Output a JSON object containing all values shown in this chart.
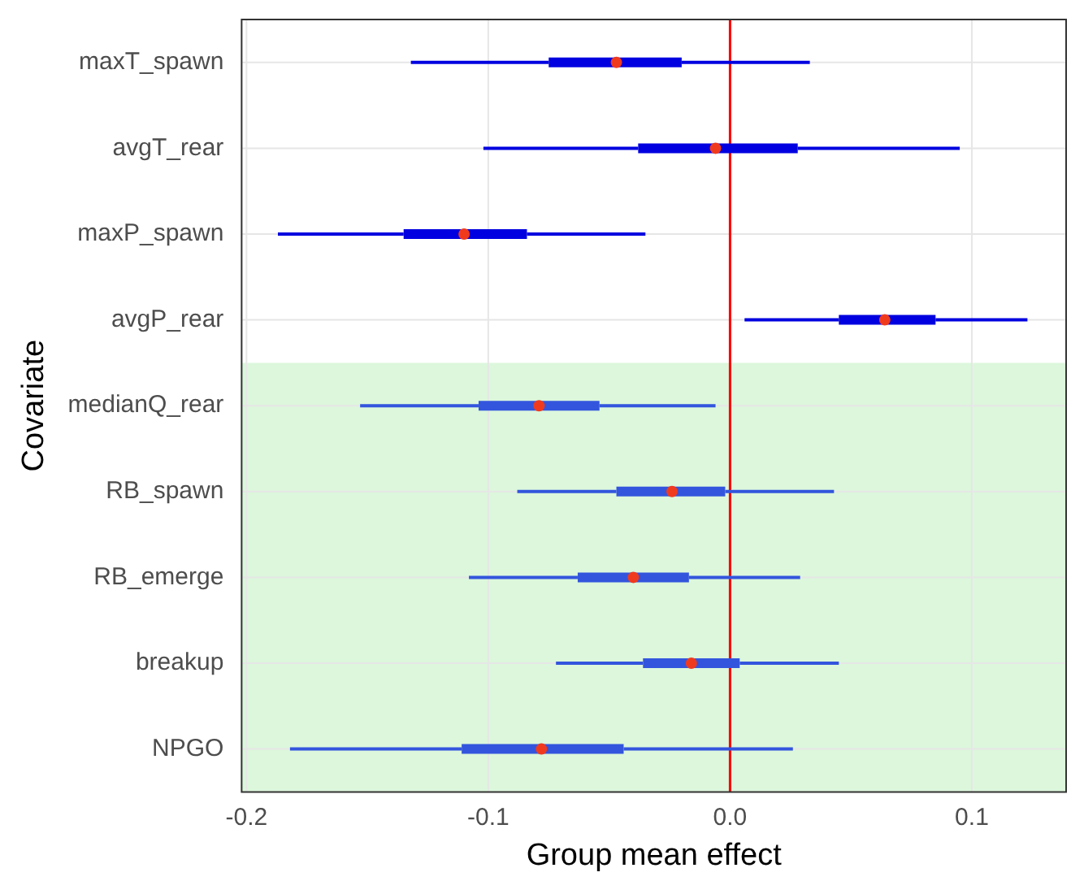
{
  "chart_data": {
    "type": "box",
    "orientation": "horizontal",
    "xlabel": "Group mean effect",
    "ylabel": "Covariate",
    "categories": [
      "maxT_spawn",
      "avgT_rear",
      "maxP_spawn",
      "avgP_rear",
      "medianQ_rear",
      "RB_spawn",
      "RB_emerge",
      "breakup",
      "NPGO"
    ],
    "boxes": [
      {
        "low": -0.132,
        "q1": -0.075,
        "median": -0.047,
        "q3": -0.02,
        "high": 0.033
      },
      {
        "low": -0.102,
        "q1": -0.038,
        "median": -0.006,
        "q3": 0.028,
        "high": 0.095
      },
      {
        "low": -0.187,
        "q1": -0.135,
        "median": -0.11,
        "q3": -0.084,
        "high": -0.035
      },
      {
        "low": 0.006,
        "q1": 0.045,
        "median": 0.064,
        "q3": 0.085,
        "high": 0.123
      },
      {
        "low": -0.153,
        "q1": -0.104,
        "median": -0.079,
        "q3": -0.054,
        "high": -0.006
      },
      {
        "low": -0.088,
        "q1": -0.047,
        "median": -0.024,
        "q3": -0.002,
        "high": 0.043
      },
      {
        "low": -0.108,
        "q1": -0.063,
        "median": -0.04,
        "q3": -0.017,
        "high": 0.029
      },
      {
        "low": -0.072,
        "q1": -0.036,
        "median": -0.016,
        "q3": 0.004,
        "high": 0.045
      },
      {
        "low": -0.182,
        "q1": -0.111,
        "median": -0.078,
        "q3": -0.044,
        "high": 0.026
      }
    ],
    "colors": [
      "#0000e0",
      "#0000e0",
      "#0000e0",
      "#0000e0",
      "#3355dd",
      "#3355dd",
      "#3355dd",
      "#3355dd",
      "#3355dd"
    ],
    "color": "#f03a1e",
    "xlim": [
      -0.202,
      0.139
    ],
    "xticks": [
      -0.2,
      -0.1,
      {
        "value": 0,
        "label": "0.0"
      },
      0.1
    ],
    "grid": true,
    "ref_lines": [
      {
        "axis": "x",
        "value": 0,
        "color": "#ff0000"
      }
    ],
    "bands": [
      {
        "axis": "y",
        "from": "medianQ_rear",
        "to": "NPGO",
        "color": "#dcf7dc"
      }
    ]
  }
}
